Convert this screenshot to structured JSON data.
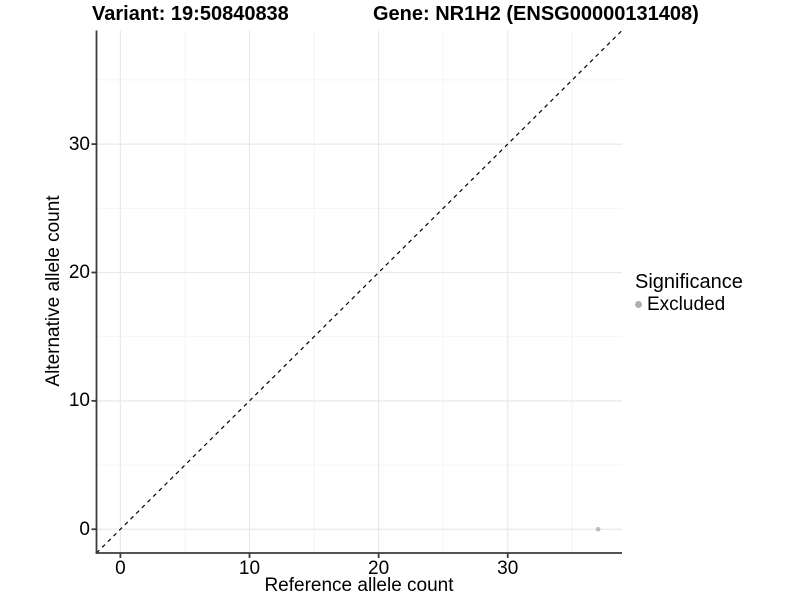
{
  "figure": {
    "title_variant": "Variant: 19:50840838",
    "title_gene": "Gene: NR1H2 (ENSG00000131408)"
  },
  "chart_data": {
    "type": "scatter",
    "title": "Variant: 19:50840838    Gene: NR1H2 (ENSG00000131408)",
    "xlabel": "Reference allele count",
    "ylabel": "Alternative allele count",
    "xlim": [
      -1.85,
      38.85
    ],
    "ylim": [
      -1.85,
      38.85
    ],
    "x_ticks": [
      0,
      10,
      20,
      30
    ],
    "y_ticks": [
      0,
      10,
      20,
      30
    ],
    "x_minor_ticks": [
      5,
      15,
      25,
      35
    ],
    "y_minor_ticks": [
      5,
      15,
      25,
      35
    ],
    "grid": true,
    "points": [
      {
        "x": 37,
        "y": 0,
        "series": "Excluded"
      }
    ],
    "reference_line": {
      "type": "identity",
      "style": "dashed",
      "color": "#000000"
    },
    "legend": {
      "title": "Significance",
      "position": "right",
      "items": [
        {
          "label": "Excluded",
          "color": "#b0b0b0"
        }
      ]
    },
    "colors": {
      "major_grid": "#e9e9e9",
      "minor_grid": "#f4f4f4",
      "axis": "#3c3c3c",
      "point": "#bdbdbd",
      "text": "#000000"
    }
  }
}
